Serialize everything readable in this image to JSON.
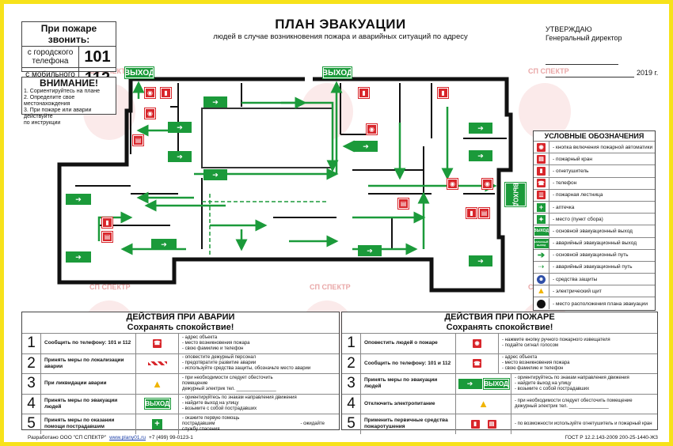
{
  "call_box": {
    "title": "При пожаре звонить:",
    "city_label": "с городского телефона",
    "city_number": "101",
    "mobile_label": "с мобильного телефона",
    "mobile_number": "112"
  },
  "attention": {
    "title": "ВНИМАНИЕ!",
    "lines": [
      "1. Сориентируйтесь на плане",
      "2. Определите свое местонахождения",
      "3. При пожаре или аварии действуйте",
      "по инструкции"
    ]
  },
  "plan": {
    "title": "ПЛАН ЭВАКУАЦИИ",
    "subtitle": "людей в случае возникновения пожара и аварийных ситуаций по адресу"
  },
  "approval": {
    "line1": "УТВЕРЖДАЮ",
    "line2": "Генеральный директор",
    "year": "2019 г."
  },
  "watermark": "СП СПЕКТР",
  "signs": {
    "exit": "ВЫХОД",
    "reserve_exit": "ЗАПАСНЫЙ ВЫХОД"
  },
  "legend": {
    "title": "УСЛОВНЫЕ ОБОЗНАЧЕНИЯ",
    "items": [
      {
        "icon": "fire-alarm-button-icon",
        "label": "- кнопка включения пожарной автоматики"
      },
      {
        "icon": "fire-hydrant-icon",
        "label": "- пожарный кран"
      },
      {
        "icon": "extinguisher-icon",
        "label": "- огнетушитель"
      },
      {
        "icon": "phone-icon",
        "label": "- телефон"
      },
      {
        "icon": "fire-ladder-icon",
        "label": "- пожарная лестница"
      },
      {
        "icon": "first-aid-icon",
        "label": "- аптечка"
      },
      {
        "icon": "assembly-point-icon",
        "label": "- место (пункт сбора)"
      },
      {
        "icon": "exit-sign-icon",
        "label": "- основной эвакуационный выход"
      },
      {
        "icon": "reserve-exit-icon",
        "label": "- аварийный эвакуационный выход"
      },
      {
        "icon": "main-path-icon",
        "label": "- основной эвакуационный путь"
      },
      {
        "icon": "emergency-path-icon",
        "label": "- аварийный эвакуационный путь"
      },
      {
        "icon": "protection-icon",
        "label": "- средства защиты"
      },
      {
        "icon": "electric-panel-icon",
        "label": "- электрический щит"
      },
      {
        "icon": "you-are-here-icon",
        "label": "- место расположения плана эвакуации"
      }
    ]
  },
  "accident": {
    "title": "ДЕЙСТВИЯ ПРИ АВАРИИ",
    "subtitle": "Сохранять спокойствие!",
    "rows": [
      {
        "n": "1",
        "text": "Сообщить по телефону: 101 и 112",
        "desc": [
          "- адрес объекта",
          "- место возникновения пожара",
          "- свою фамилию и телефон"
        ]
      },
      {
        "n": "2",
        "text": "Принять меры по локализации аварии",
        "desc": [
          "- оповестите дежурный персонал",
          "- предотвратите развитие аварии",
          "- используйте средства защиты, обозначьте место аварии"
        ]
      },
      {
        "n": "3",
        "text": "При ликвидации аварии",
        "desc": [
          "- при необходимости следует обесточить",
          "помещение",
          "дежурный электрик тел. _______________"
        ]
      },
      {
        "n": "4",
        "text": "Принять меры по эвакуации людей",
        "desc": [
          "- ориентируйтесь по знакам направления движения",
          "- найдите выход на улицу",
          "- возьмите с собой пострадавших"
        ]
      },
      {
        "n": "5",
        "text": "Принять меры по оказании помощи пострадавшим",
        "desc": [
          "- окажите первую помощь",
          "пострадавшим",
          "службу спасения",
          "- ожидайте"
        ]
      }
    ]
  },
  "fire": {
    "title": "ДЕЙСТВИЯ ПРИ ПОЖАРЕ",
    "subtitle": "Сохранять спокойствие!",
    "rows": [
      {
        "n": "1",
        "text": "Оповестить людей о пожаре",
        "desc": [
          "- нажмите кнопку ручного пожарного извещателя",
          "- подайте сигнал голосом"
        ]
      },
      {
        "n": "2",
        "text": "Сообщить по телефону: 101 и 112",
        "desc": [
          "- адрес объекта",
          "- место возникновения пожара",
          "- свою фамилию и телефон"
        ]
      },
      {
        "n": "3",
        "text": "Принять меры по эвакуации людей",
        "desc": [
          "- ориентируйтесь по знакам направления движения",
          "- найдите выход на улицу",
          "- возьмите с собой пострадавших"
        ]
      },
      {
        "n": "4",
        "text": "Отключить электропитание",
        "desc": [
          "- при необходимости следует обесточить помещение",
          "дежурный электрик тел. _______________"
        ]
      },
      {
        "n": "5",
        "text": "Применить первичные средства пожаротушения",
        "desc": [
          "- по возможности используйте огнетушитель и пожарный кран"
        ]
      }
    ]
  },
  "footer": {
    "developer": "Разработано ООО \"СП СПЕКТР\"",
    "site": "www.plany01.ru",
    "phone": "+7 (499) 99-0123-1",
    "standard": "ГОСТ Р 12.2.143-2009 200-25-1440-ЖЗ"
  },
  "colors": {
    "green": "#1b9a3a",
    "red": "#d8262b",
    "frame": "#f7e21a"
  }
}
